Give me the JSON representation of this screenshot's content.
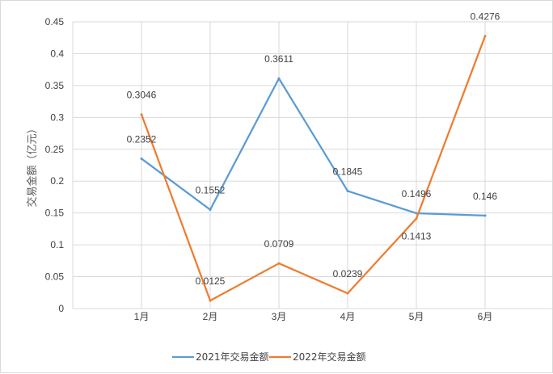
{
  "chart_data": {
    "type": "line",
    "title": "",
    "xlabel": "",
    "ylabel": "交易金额（亿元）",
    "categories": [
      "1月",
      "2月",
      "3月",
      "4月",
      "5月",
      "6月"
    ],
    "y_ticks": [
      "0",
      "0.05",
      "0.1",
      "0.15",
      "0.2",
      "0.25",
      "0.3",
      "0.35",
      "0.4",
      "0.45"
    ],
    "ylim": [
      0,
      0.45
    ],
    "grid": "vertical and horizontal",
    "legend_position": "bottom",
    "series": [
      {
        "name": "2021年交易金额",
        "color": "#5b9bd5",
        "values": [
          0.2352,
          0.1552,
          0.3611,
          0.1845,
          0.1496,
          0.146
        ],
        "labels": [
          "0.2352",
          "0.1552",
          "0.3611",
          "0.1845",
          "0.1496",
          "0.146"
        ]
      },
      {
        "name": "2022年交易金额",
        "color": "#ed7d31",
        "values": [
          0.3046,
          0.0125,
          0.0709,
          0.0239,
          0.1413,
          0.4276
        ],
        "labels": [
          "0.3046",
          "0.0125",
          "0.0709",
          "0.0239",
          "0.1413",
          "0.4276"
        ]
      }
    ]
  }
}
